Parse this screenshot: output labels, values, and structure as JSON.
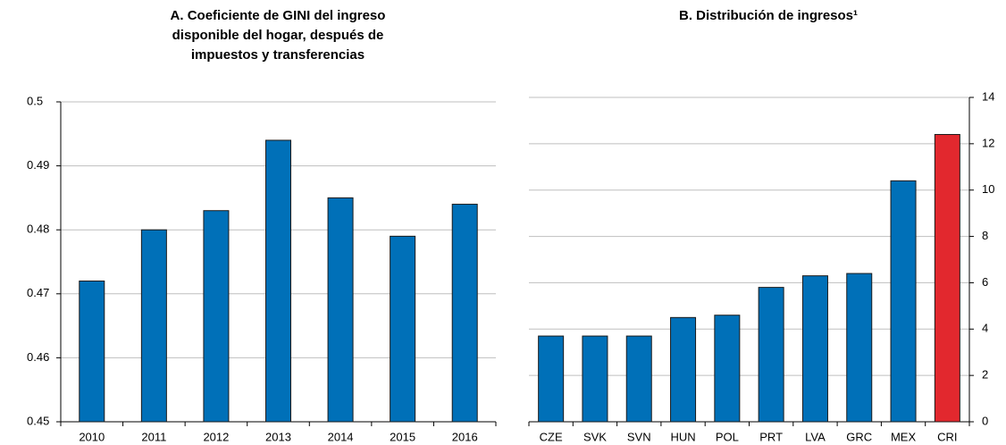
{
  "chart_data": [
    {
      "type": "bar",
      "title": [
        "A. Coeficiente de GINI del ingreso",
        "disponible del hogar, después de",
        "impuestos y transferencias"
      ],
      "categories": [
        "2010",
        "2011",
        "2012",
        "2013",
        "2014",
        "2015",
        "2016"
      ],
      "values": [
        0.472,
        0.48,
        0.483,
        0.494,
        0.485,
        0.479,
        0.484
      ],
      "color": "#0070b8",
      "ylim": [
        0.45,
        0.5
      ],
      "yticks": [
        0.45,
        0.46,
        0.47,
        0.48,
        0.49,
        0.5
      ],
      "y_axis_side": "left",
      "grid": true
    },
    {
      "type": "bar",
      "title": [
        "B. Distribución de ingresos¹"
      ],
      "categories": [
        "CZE",
        "SVK",
        "SVN",
        "HUN",
        "POL",
        "PRT",
        "LVA",
        "GRC",
        "MEX",
        "CRI"
      ],
      "values": [
        3.7,
        3.7,
        3.7,
        4.5,
        4.6,
        5.8,
        6.3,
        6.4,
        10.4,
        12.4
      ],
      "colors": [
        "#0070b8",
        "#0070b8",
        "#0070b8",
        "#0070b8",
        "#0070b8",
        "#0070b8",
        "#0070b8",
        "#0070b8",
        "#0070b8",
        "#e2282e"
      ],
      "ylim": [
        0,
        14
      ],
      "yticks": [
        0,
        2,
        4,
        6,
        8,
        10,
        12,
        14
      ],
      "y_axis_side": "right",
      "grid": true
    }
  ]
}
